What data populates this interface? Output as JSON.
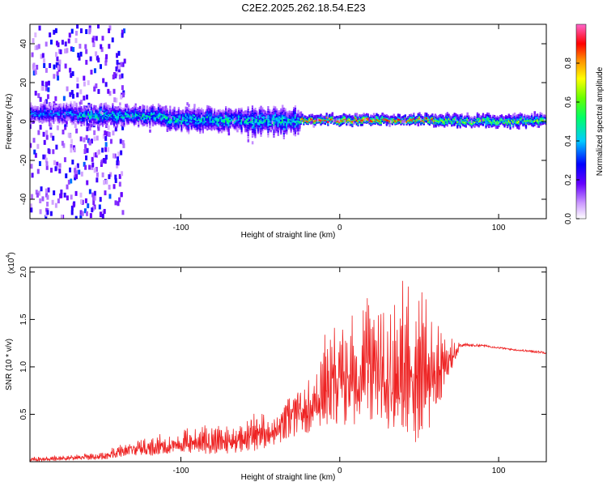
{
  "title": "C2E2.2025.262.18.54.E23",
  "chart_data": [
    {
      "type": "heatmap",
      "name": "spectrogram",
      "xlabel": "Height of straight line (km)",
      "ylabel": "Frequency (Hz)",
      "xlim": [
        -195,
        130
      ],
      "ylim": [
        -50,
        50
      ],
      "x_ticks": [
        -100,
        0,
        100
      ],
      "y_ticks": [
        -40,
        -20,
        0,
        20,
        40
      ],
      "colorbar": {
        "label": "Normalized spectral amplitude",
        "range": [
          0,
          1
        ],
        "ticks": [
          0,
          0.2,
          0.4,
          0.6,
          0.8
        ],
        "tick_labels": [
          "0.0",
          "0.2",
          "0.4",
          "0.6",
          "0.8"
        ],
        "colormap": [
          "#ffffff",
          "#9933ff",
          "#0000ff",
          "#00ccff",
          "#00ff66",
          "#ffff00",
          "#ff8800",
          "#ff0000",
          "#ff66cc"
        ]
      },
      "bands": [
        {
          "x": [
            -195,
            -165
          ],
          "freq_center": 4,
          "freq_halfwidth": 4,
          "amplitude": 0.35
        },
        {
          "x": [
            -165,
            -110
          ],
          "freq_center": 3,
          "freq_halfwidth": 4,
          "amplitude": 0.45
        },
        {
          "x": [
            -110,
            -60
          ],
          "freq_center": 1,
          "freq_halfwidth": 5,
          "amplitude": 0.45
        },
        {
          "x": [
            -60,
            -25
          ],
          "freq_center": 0,
          "freq_halfwidth": 6,
          "amplitude": 0.45
        },
        {
          "x": [
            -25,
            60
          ],
          "freq_center": 1,
          "freq_halfwidth": 2,
          "amplitude": 0.75
        },
        {
          "x": [
            60,
            130
          ],
          "freq_center": 0.5,
          "freq_halfwidth": 2.5,
          "amplitude": 0.6
        }
      ],
      "scatter_region": {
        "x": [
          -195,
          -135
        ],
        "freq": [
          -50,
          50
        ],
        "amplitude": 0.2
      }
    },
    {
      "type": "line",
      "name": "snr",
      "xlabel": "Height of straight line (km)",
      "ylabel": "SNR (10 * v/v)",
      "y_scale_label": "(x10",
      "y_scale_exponent": "4",
      "y_scale_close": ")",
      "xlim": [
        -195,
        130
      ],
      "ylim": [
        0,
        2.05
      ],
      "x_ticks": [
        -100,
        0,
        100
      ],
      "y_ticks": [
        0.5,
        1.0,
        1.5,
        2.0
      ],
      "y_tick_labels": [
        "0.5",
        "1.0",
        "1.5",
        "2.0"
      ],
      "color": "#ee2222",
      "envelope": {
        "x": [
          -195,
          -150,
          -130,
          -110,
          -90,
          -70,
          -50,
          -40,
          -30,
          -20,
          -10,
          0,
          10,
          20,
          30,
          40,
          50,
          60,
          70,
          75,
          90,
          110,
          130
        ],
        "low": [
          0.0,
          0.02,
          0.05,
          0.07,
          0.08,
          0.08,
          0.12,
          0.18,
          0.25,
          0.3,
          0.35,
          0.35,
          0.38,
          0.4,
          0.3,
          0.2,
          0.2,
          0.45,
          0.9,
          1.18,
          1.2,
          1.16,
          1.12
        ],
        "high": [
          0.05,
          0.1,
          0.25,
          0.3,
          0.4,
          0.4,
          0.55,
          0.5,
          0.8,
          0.85,
          1.4,
          1.5,
          1.6,
          1.8,
          1.65,
          1.95,
          2.0,
          1.55,
          1.3,
          1.28,
          1.25,
          1.2,
          1.18
        ]
      }
    }
  ]
}
